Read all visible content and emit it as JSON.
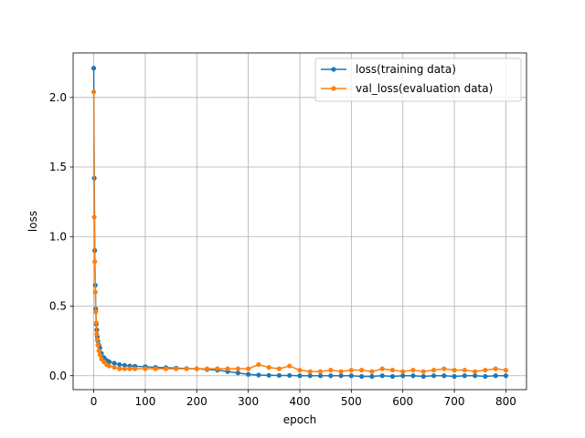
{
  "chart_data": {
    "type": "line",
    "title": "",
    "xlabel": "epoch",
    "ylabel": "loss",
    "xlim": [
      -40,
      840
    ],
    "ylim": [
      -0.1,
      2.32
    ],
    "xticks": [
      0,
      100,
      200,
      300,
      400,
      500,
      600,
      700,
      800
    ],
    "yticks": [
      0.0,
      0.5,
      1.0,
      1.5,
      2.0
    ],
    "xtick_labels": [
      "0",
      "100",
      "200",
      "300",
      "400",
      "500",
      "600",
      "700",
      "800"
    ],
    "ytick_labels": [
      "0.0",
      "0.5",
      "1.0",
      "1.5",
      "2.0"
    ],
    "grid": true,
    "legend_position": "upper right",
    "series": [
      {
        "name": "loss(training data)",
        "color": "#1f77b4",
        "marker": "circle",
        "x": [
          0,
          1,
          2,
          3,
          4,
          5,
          6,
          7,
          8,
          10,
          12,
          15,
          20,
          25,
          30,
          40,
          50,
          60,
          70,
          80,
          100,
          120,
          140,
          160,
          180,
          200,
          220,
          240,
          260,
          280,
          300,
          320,
          340,
          360,
          380,
          400,
          420,
          440,
          460,
          480,
          500,
          520,
          540,
          560,
          580,
          600,
          620,
          640,
          660,
          680,
          700,
          720,
          740,
          760,
          780,
          800
        ],
        "y": [
          2.21,
          1.42,
          0.9,
          0.65,
          0.48,
          0.37,
          0.33,
          0.28,
          0.25,
          0.22,
          0.2,
          0.16,
          0.13,
          0.11,
          0.1,
          0.09,
          0.08,
          0.075,
          0.07,
          0.068,
          0.065,
          0.06,
          0.058,
          0.055,
          0.052,
          0.05,
          0.045,
          0.04,
          0.03,
          0.02,
          0.01,
          0.005,
          0.003,
          0.002,
          0.002,
          0.0,
          0.0,
          0.0,
          0.0,
          0.0,
          0.0,
          -0.005,
          -0.005,
          0.0,
          -0.005,
          0.0,
          0.0,
          -0.005,
          0.0,
          0.0,
          -0.005,
          0.0,
          0.0,
          -0.005,
          0.0,
          0.0
        ]
      },
      {
        "name": "val_loss(evaluation data)",
        "color": "#ff7f0e",
        "marker": "circle",
        "x": [
          0,
          1,
          2,
          3,
          4,
          5,
          6,
          7,
          8,
          10,
          12,
          15,
          20,
          25,
          30,
          40,
          50,
          60,
          70,
          80,
          100,
          120,
          140,
          160,
          180,
          200,
          220,
          240,
          260,
          280,
          300,
          320,
          340,
          360,
          380,
          400,
          420,
          440,
          460,
          480,
          500,
          520,
          540,
          560,
          580,
          600,
          620,
          640,
          660,
          680,
          700,
          720,
          740,
          760,
          780,
          800
        ],
        "y": [
          2.04,
          1.14,
          0.82,
          0.6,
          0.46,
          0.38,
          0.3,
          0.26,
          0.22,
          0.18,
          0.15,
          0.12,
          0.1,
          0.08,
          0.07,
          0.06,
          0.05,
          0.05,
          0.05,
          0.05,
          0.05,
          0.05,
          0.05,
          0.05,
          0.05,
          0.05,
          0.05,
          0.05,
          0.05,
          0.05,
          0.05,
          0.08,
          0.06,
          0.05,
          0.07,
          0.04,
          0.03,
          0.03,
          0.04,
          0.03,
          0.04,
          0.04,
          0.03,
          0.05,
          0.04,
          0.03,
          0.04,
          0.03,
          0.04,
          0.05,
          0.04,
          0.04,
          0.03,
          0.04,
          0.05,
          0.04
        ]
      }
    ]
  }
}
